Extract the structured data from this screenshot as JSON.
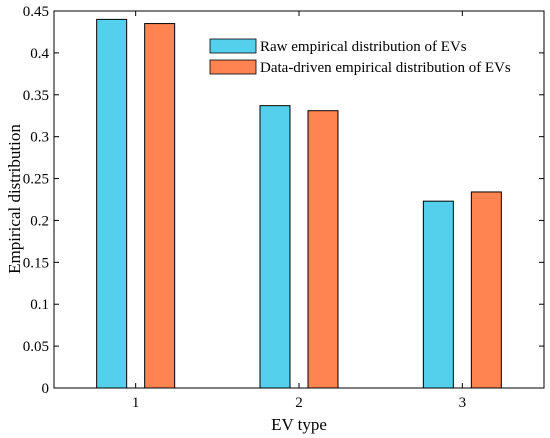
{
  "chart_data": {
    "type": "bar",
    "xlabel": "EV type",
    "ylabel": "Empirical distribution",
    "categories": [
      "1",
      "2",
      "3"
    ],
    "ylim": [
      0,
      0.45
    ],
    "yticks": [
      "0",
      "0.05",
      "0.1",
      "0.15",
      "0.2",
      "0.25",
      "0.3",
      "0.35",
      "0.4",
      "0.45"
    ],
    "grid": false,
    "legend_position": "top-right",
    "series": [
      {
        "name": "Raw empirical distribution of EVs",
        "values": [
          0.44,
          0.337,
          0.223
        ],
        "color": "#55D0EC"
      },
      {
        "name": "Data-driven empirical distribution of EVs",
        "values": [
          0.435,
          0.331,
          0.234
        ],
        "color": "#FF8452"
      }
    ]
  }
}
